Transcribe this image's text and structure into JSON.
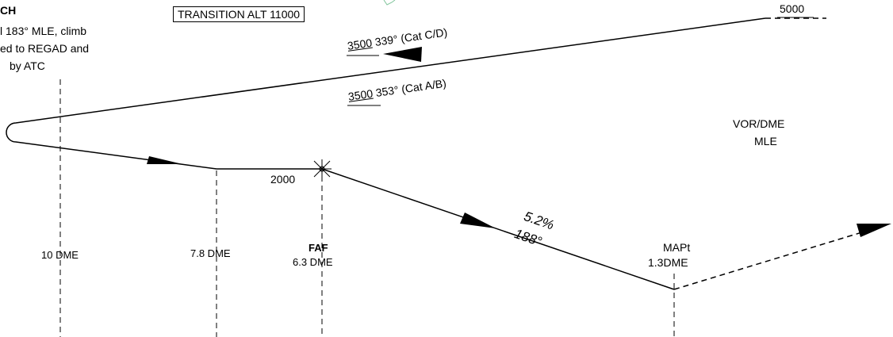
{
  "missed_approach": {
    "title_fragment": "CH",
    "lines": [
      "l 183° MLE, climb",
      "ed to REGAD and",
      "by ATC"
    ]
  },
  "transition_alt": "TRANSITION ALT 11000",
  "right_altitude": "5000",
  "procedure_turn": {
    "cat_cd": {
      "altitude": "3500",
      "track": "339° (Cat C/D)"
    },
    "cat_ab": {
      "altitude": "3500",
      "track": "353° (Cat A/B)"
    }
  },
  "navaid": {
    "type": "VOR/DME",
    "ident": "MLE"
  },
  "altitude_2000": "2000",
  "fixes": {
    "dme_10": "10 DME",
    "dme_7_8": "7.8 DME",
    "faf": {
      "name": "FAF",
      "dme": "6.3 DME"
    },
    "mapt": {
      "name": "MAPt",
      "dme": "1.3DME"
    }
  },
  "final": {
    "gradient": "5.2%",
    "course": "188°"
  }
}
